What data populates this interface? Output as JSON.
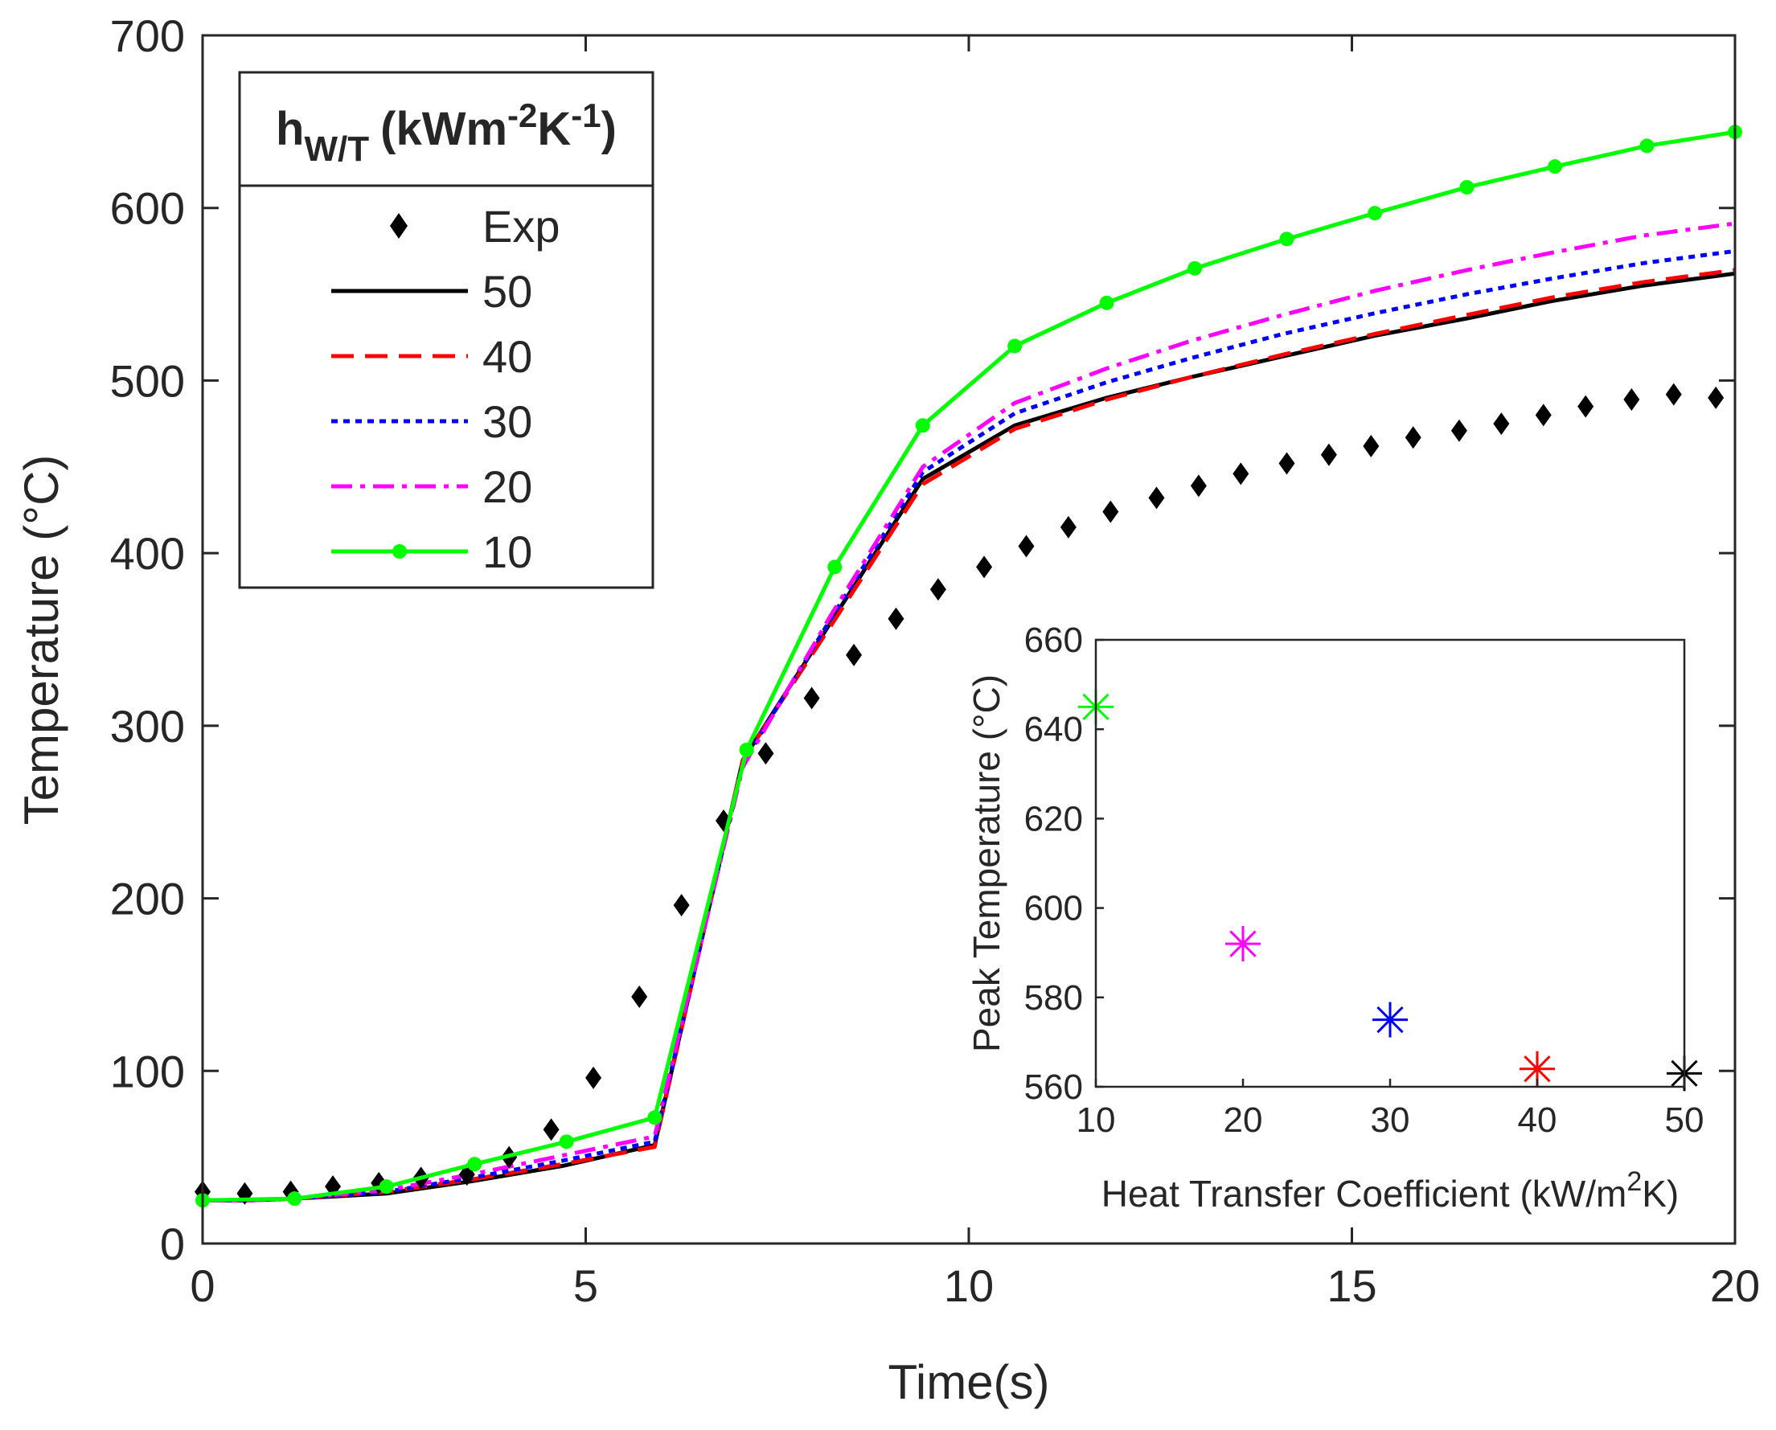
{
  "chart_data": [
    {
      "type": "line",
      "xlabel": "Time(s)",
      "ylabel": "Temperature (°C)",
      "xlim": [
        0,
        20
      ],
      "ylim": [
        0,
        700
      ],
      "xticks": [
        0,
        5,
        10,
        15,
        20
      ],
      "yticks": [
        0,
        100,
        200,
        300,
        400,
        500,
        600,
        700
      ],
      "grid": false,
      "legend": {
        "placement": "top-left",
        "title_main": "h",
        "title_sub": "W/T",
        "title_unit_a": "(kWm",
        "title_sup_a": "-2",
        "title_unit_b": "K",
        "title_sup_b": "-1",
        "title_close": ")"
      },
      "series": [
        {
          "name": "Exp",
          "style": "diamond-markers",
          "color": "#000000",
          "x": [
            0,
            0.55,
            1.15,
            1.7,
            2.3,
            2.85,
            3.45,
            4.0,
            4.55,
            5.1,
            5.7,
            6.25,
            6.8,
            7.35,
            7.95,
            8.5,
            9.05,
            9.6,
            10.2,
            10.75,
            11.3,
            11.85,
            12.45,
            13.0,
            13.55,
            14.15,
            14.7,
            15.25,
            15.8,
            16.4,
            16.95,
            17.5,
            18.05,
            18.65,
            19.2,
            19.75
          ],
          "y": [
            30,
            29,
            30,
            33,
            35,
            38,
            40,
            50,
            66,
            96,
            143,
            196,
            245,
            284,
            316,
            341,
            362,
            379,
            392,
            404,
            415,
            424,
            432,
            439,
            446,
            452,
            457,
            462,
            467,
            471,
            475,
            480,
            485,
            489,
            492,
            490
          ]
        },
        {
          "name": "50",
          "style": "solid",
          "color": "#000000",
          "x": [
            0,
            0.6,
            1.2,
            2.4,
            3.5,
            4.7,
            5.9,
            7.05,
            8.2,
            9.4,
            10.6,
            11.8,
            12.9,
            14.1,
            15.3,
            16.5,
            17.6,
            18.8,
            20.0
          ],
          "y": [
            25,
            25,
            26,
            29,
            36,
            45,
            57,
            280,
            360,
            443,
            474,
            490,
            502,
            514,
            526,
            536,
            546,
            555,
            562
          ]
        },
        {
          "name": "40",
          "style": "dashed",
          "color": "#ff0000",
          "x": [
            0,
            0.6,
            1.2,
            2.4,
            3.5,
            4.7,
            5.9,
            7.05,
            8.2,
            9.4,
            10.6,
            11.8,
            12.9,
            14.1,
            15.3,
            16.5,
            17.6,
            18.8,
            20.0
          ],
          "y": [
            25,
            25,
            26,
            30,
            37,
            46,
            56,
            280,
            358,
            440,
            472,
            489,
            502,
            515,
            527,
            538,
            548,
            557,
            564
          ]
        },
        {
          "name": "30",
          "style": "dotted",
          "color": "#0000ff",
          "x": [
            0,
            0.6,
            1.2,
            2.4,
            3.5,
            4.7,
            5.9,
            7.05,
            8.2,
            9.4,
            10.6,
            11.8,
            12.9,
            14.1,
            15.3,
            16.5,
            17.6,
            18.8,
            20.0
          ],
          "y": [
            25,
            25,
            26,
            30,
            38,
            48,
            59,
            278,
            362,
            447,
            481,
            499,
            513,
            527,
            539,
            550,
            559,
            568,
            575
          ]
        },
        {
          "name": "20",
          "style": "dashdot",
          "color": "#ff00ff",
          "x": [
            0,
            0.6,
            1.2,
            2.4,
            3.5,
            4.7,
            5.9,
            7.05,
            8.2,
            9.4,
            10.6,
            11.8,
            12.9,
            14.1,
            15.3,
            16.5,
            17.6,
            18.8,
            20.0
          ],
          "y": [
            25,
            25,
            26,
            31,
            40,
            51,
            62,
            276,
            364,
            450,
            487,
            507,
            523,
            538,
            552,
            564,
            574,
            584,
            591
          ]
        },
        {
          "name": "10",
          "style": "solid-circles",
          "color": "#00ff00",
          "x": [
            0,
            1.2,
            2.4,
            3.55,
            4.75,
            5.9,
            7.1,
            8.25,
            9.4,
            10.6,
            11.8,
            12.95,
            14.15,
            15.3,
            16.5,
            17.65,
            18.85,
            20.0
          ],
          "y": [
            25,
            26,
            33,
            46,
            59,
            73,
            286,
            392,
            474,
            520,
            545,
            565,
            582,
            597,
            612,
            624,
            636,
            644
          ]
        }
      ]
    },
    {
      "type": "scatter",
      "xlabel": "Heat Transfer Coefficient (kW/m",
      "xlabel_sup": "2",
      "xlabel_tail": "K)",
      "ylabel": "Peak Temperature (°C)",
      "xlim": [
        10,
        50
      ],
      "ylim": [
        560,
        660
      ],
      "xticks": [
        10,
        20,
        30,
        40,
        50
      ],
      "yticks": [
        560,
        580,
        600,
        620,
        640,
        660
      ],
      "grid": false,
      "marker": "asterisk",
      "points": [
        {
          "x": 10,
          "y": 645,
          "color": "#00ff00"
        },
        {
          "x": 20,
          "y": 592,
          "color": "#ff00ff"
        },
        {
          "x": 30,
          "y": 575,
          "color": "#0000ff"
        },
        {
          "x": 40,
          "y": 564,
          "color": "#ff0000"
        },
        {
          "x": 50,
          "y": 563,
          "color": "#000000"
        }
      ]
    }
  ]
}
